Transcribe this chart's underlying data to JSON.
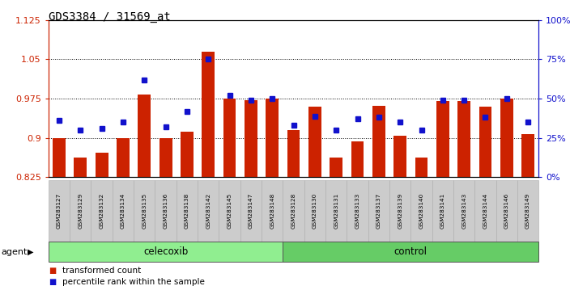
{
  "title": "GDS3384 / 31569_at",
  "samples": [
    "GSM283127",
    "GSM283129",
    "GSM283132",
    "GSM283134",
    "GSM283135",
    "GSM283136",
    "GSM283138",
    "GSM283142",
    "GSM283145",
    "GSM283147",
    "GSM283148",
    "GSM283128",
    "GSM283130",
    "GSM283131",
    "GSM283133",
    "GSM283137",
    "GSM283139",
    "GSM283140",
    "GSM283141",
    "GSM283143",
    "GSM283144",
    "GSM283146",
    "GSM283149"
  ],
  "transformed_count": [
    0.9,
    0.862,
    0.872,
    0.9,
    0.983,
    0.9,
    0.912,
    1.065,
    0.975,
    0.972,
    0.975,
    0.915,
    0.96,
    0.862,
    0.893,
    0.962,
    0.905,
    0.862,
    0.97,
    0.97,
    0.96,
    0.975,
    0.908
  ],
  "percentile_rank": [
    36,
    30,
    31,
    35,
    62,
    32,
    42,
    75,
    52,
    49,
    50,
    33,
    39,
    30,
    37,
    38,
    35,
    30,
    49,
    49,
    38,
    50,
    35
  ],
  "celecoxib_count": 11,
  "ylim_left": [
    0.825,
    1.125
  ],
  "ylim_right": [
    0,
    100
  ],
  "yticks_left": [
    0.825,
    0.9,
    0.975,
    1.05,
    1.125
  ],
  "yticks_right": [
    0,
    25,
    50,
    75,
    100
  ],
  "ytick_labels_left": [
    "0.825",
    "0.9",
    "0.975",
    "1.05",
    "1.125"
  ],
  "ytick_labels_right": [
    "0%",
    "25%",
    "50%",
    "75%",
    "100%"
  ],
  "bar_color": "#cc2200",
  "marker_color": "#1111cc",
  "bg_color": "#ffffff",
  "plot_bg_color": "#ffffff",
  "celecoxib_label": "celecoxib",
  "control_label": "control",
  "agent_label": "agent",
  "legend_bar": "transformed count",
  "legend_marker": "percentile rank within the sample",
  "left_axis_color": "#cc2200",
  "right_axis_color": "#1111cc",
  "xticklabel_bg": "#cccccc",
  "agent_box_color_left": "#90ee90",
  "agent_box_color_right": "#66cc66"
}
